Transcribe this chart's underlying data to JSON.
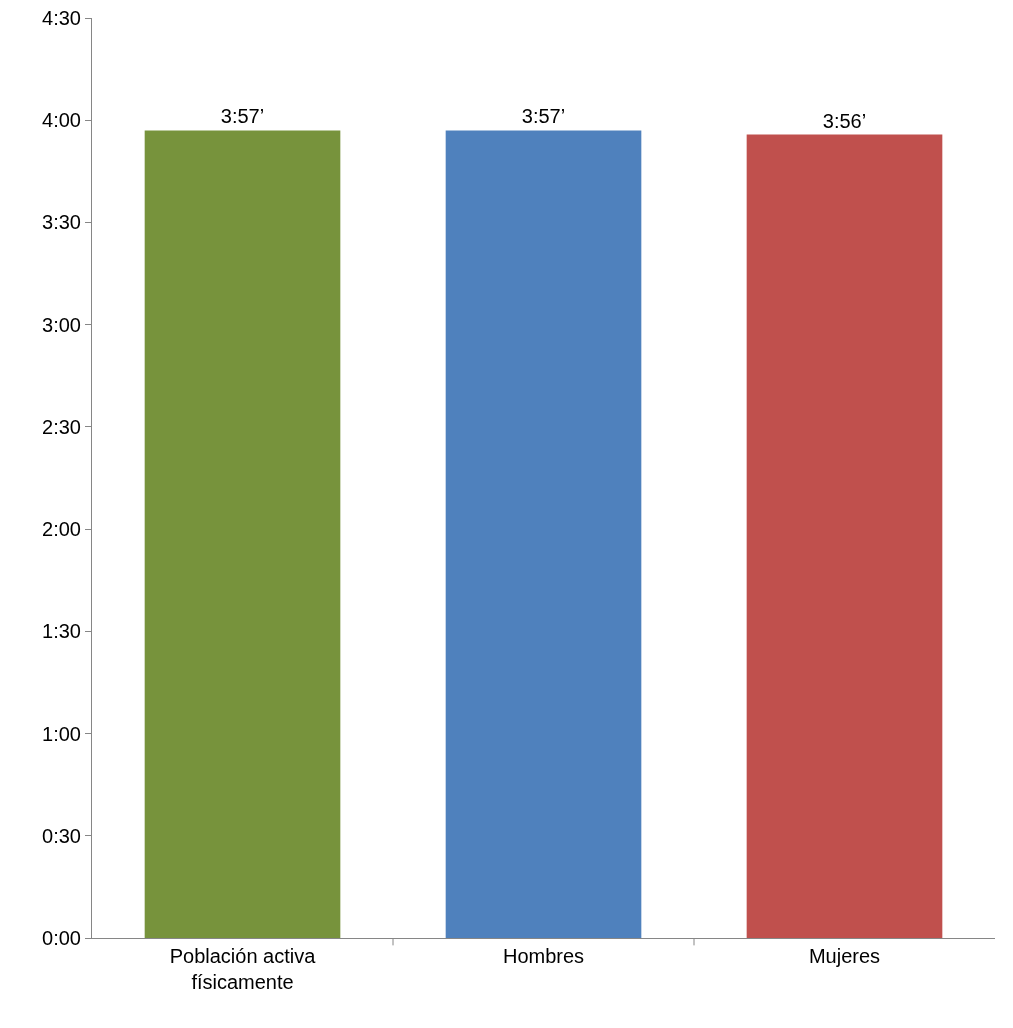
{
  "chart_data": {
    "type": "bar",
    "categories": [
      "Población activa físicamente",
      "Hombres",
      "Mujeres"
    ],
    "values": [
      3.95,
      3.95,
      3.93
    ],
    "colors": [
      "#77933c",
      "#4f81bd",
      "#c0504d"
    ],
    "value_labels": [
      "3:57’",
      "3:57’",
      "3:56’"
    ],
    "ylim": [
      0,
      4.5
    ],
    "yticks": [
      {
        "value": 0,
        "label": "0:00"
      },
      {
        "value": 0.5,
        "label": "0:30"
      },
      {
        "value": 1,
        "label": "1:00"
      },
      {
        "value": 1.5,
        "label": "1:30"
      },
      {
        "value": 2,
        "label": "2:00"
      },
      {
        "value": 2.5,
        "label": "2:30"
      },
      {
        "value": 3,
        "label": "3:00"
      },
      {
        "value": 3.5,
        "label": "3:30"
      },
      {
        "value": 4,
        "label": "4:00"
      },
      {
        "value": 4.5,
        "label": "4:30"
      }
    ],
    "grid": false
  }
}
